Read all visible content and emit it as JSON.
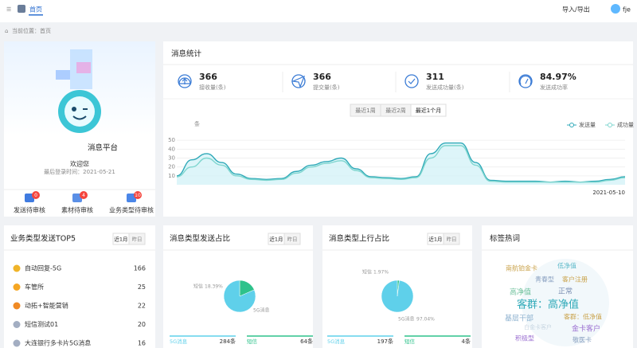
{
  "topbar": {
    "tab": "首页",
    "export": "导入/导出",
    "user": "fje"
  },
  "breadcrumb": "当前位置：首页",
  "profile": {
    "name": "消息平台",
    "welcome": "欢迎您",
    "last_login": "最后登录时间：2021-05-21",
    "badges": [
      {
        "label": "发送待审核",
        "count": 0
      },
      {
        "label": "素材待审核",
        "count": 4
      },
      {
        "label": "业务类型待审核",
        "count": 10
      }
    ]
  },
  "stats": {
    "title": "消息统计",
    "items": [
      {
        "value": "366",
        "label": "接收量(条)"
      },
      {
        "value": "366",
        "label": "提交量(条)"
      },
      {
        "value": "311",
        "label": "发送成功量(条)"
      },
      {
        "value": "84.97%",
        "label": "发送成功率"
      }
    ],
    "tabs": [
      "最近1周",
      "最近2周",
      "最近1个月"
    ],
    "active_tab": 2
  },
  "chart_data": {
    "type": "line",
    "unit": "条",
    "categories": [
      null,
      null,
      null,
      null,
      null,
      null,
      null,
      null,
      null,
      null,
      null,
      null,
      null,
      null,
      null,
      null,
      null,
      null,
      null,
      null,
      null,
      null,
      null,
      null,
      null,
      null,
      null,
      null,
      null,
      null,
      "2021-05-10"
    ],
    "series": [
      {
        "name": "发送量",
        "color": "#2fa9b8",
        "values": [
          10,
          28,
          35,
          25,
          12,
          7,
          6,
          7,
          15,
          22,
          26,
          30,
          18,
          9,
          8,
          7,
          9,
          35,
          47,
          47,
          25,
          5,
          4,
          4,
          4,
          3,
          4,
          3,
          4,
          6,
          9
        ]
      },
      {
        "name": "成功量",
        "color": "#7fd6cf",
        "values": [
          9,
          20,
          30,
          22,
          10,
          6,
          5,
          6,
          13,
          20,
          24,
          27,
          16,
          8,
          7,
          6,
          8,
          30,
          44,
          44,
          22,
          4,
          3,
          3,
          3,
          3,
          3,
          3,
          3,
          5,
          8
        ]
      }
    ],
    "ylim": [
      0,
      60
    ],
    "yticks": [
      10,
      20,
      30,
      40,
      50
    ],
    "grid": true,
    "legend": "top-right"
  },
  "top5": {
    "title": "业务类型发送TOP5",
    "tabs": [
      "近1月",
      "昨日"
    ],
    "rows": [
      {
        "name": "自动回复-5G",
        "value": 166
      },
      {
        "name": "车管所",
        "value": 25
      },
      {
        "name": "动拓+智能营销",
        "value": 22
      },
      {
        "name": "短信测试01",
        "value": 20
      },
      {
        "name": "大连银行多卡片5G消息",
        "value": 16
      }
    ]
  },
  "send_share": {
    "title": "消息类型发送占比",
    "tabs": [
      "近1月",
      "昨日"
    ],
    "chart": {
      "type": "pie",
      "categories": [
        "短信",
        "5G消息"
      ],
      "values": [
        18.39,
        81.61
      ],
      "value_labels": [
        "18.39%",
        null
      ],
      "colors": [
        "#2ec28b",
        "#5fd0ea"
      ]
    },
    "totals": [
      {
        "name": "5G消息",
        "count": "284条"
      },
      {
        "name": "短信",
        "count": "64条"
      }
    ]
  },
  "up_share": {
    "title": "消息类型上行占比",
    "tabs": [
      "近1月",
      "昨日"
    ],
    "chart": {
      "type": "pie",
      "categories": [
        "短信",
        "5G消息"
      ],
      "values": [
        1.97,
        97.04
      ],
      "value_labels": [
        "1.97%",
        "97.04%"
      ],
      "colors": [
        "#2ec28b",
        "#5fd0ea"
      ]
    },
    "totals": [
      {
        "name": "5G消息",
        "count": "197条"
      },
      {
        "name": "短信",
        "count": "4条"
      }
    ]
  },
  "hotwords": {
    "title": "标签热词",
    "words": [
      "南航铂金卡",
      "低净值",
      "青春型",
      "客户注册",
      "高净值",
      "正常",
      "客群：高净值",
      "基层干部",
      "客群：低净值",
      "金卡客户",
      "白金卡客户",
      "积极型",
      "敬医卡"
    ]
  }
}
